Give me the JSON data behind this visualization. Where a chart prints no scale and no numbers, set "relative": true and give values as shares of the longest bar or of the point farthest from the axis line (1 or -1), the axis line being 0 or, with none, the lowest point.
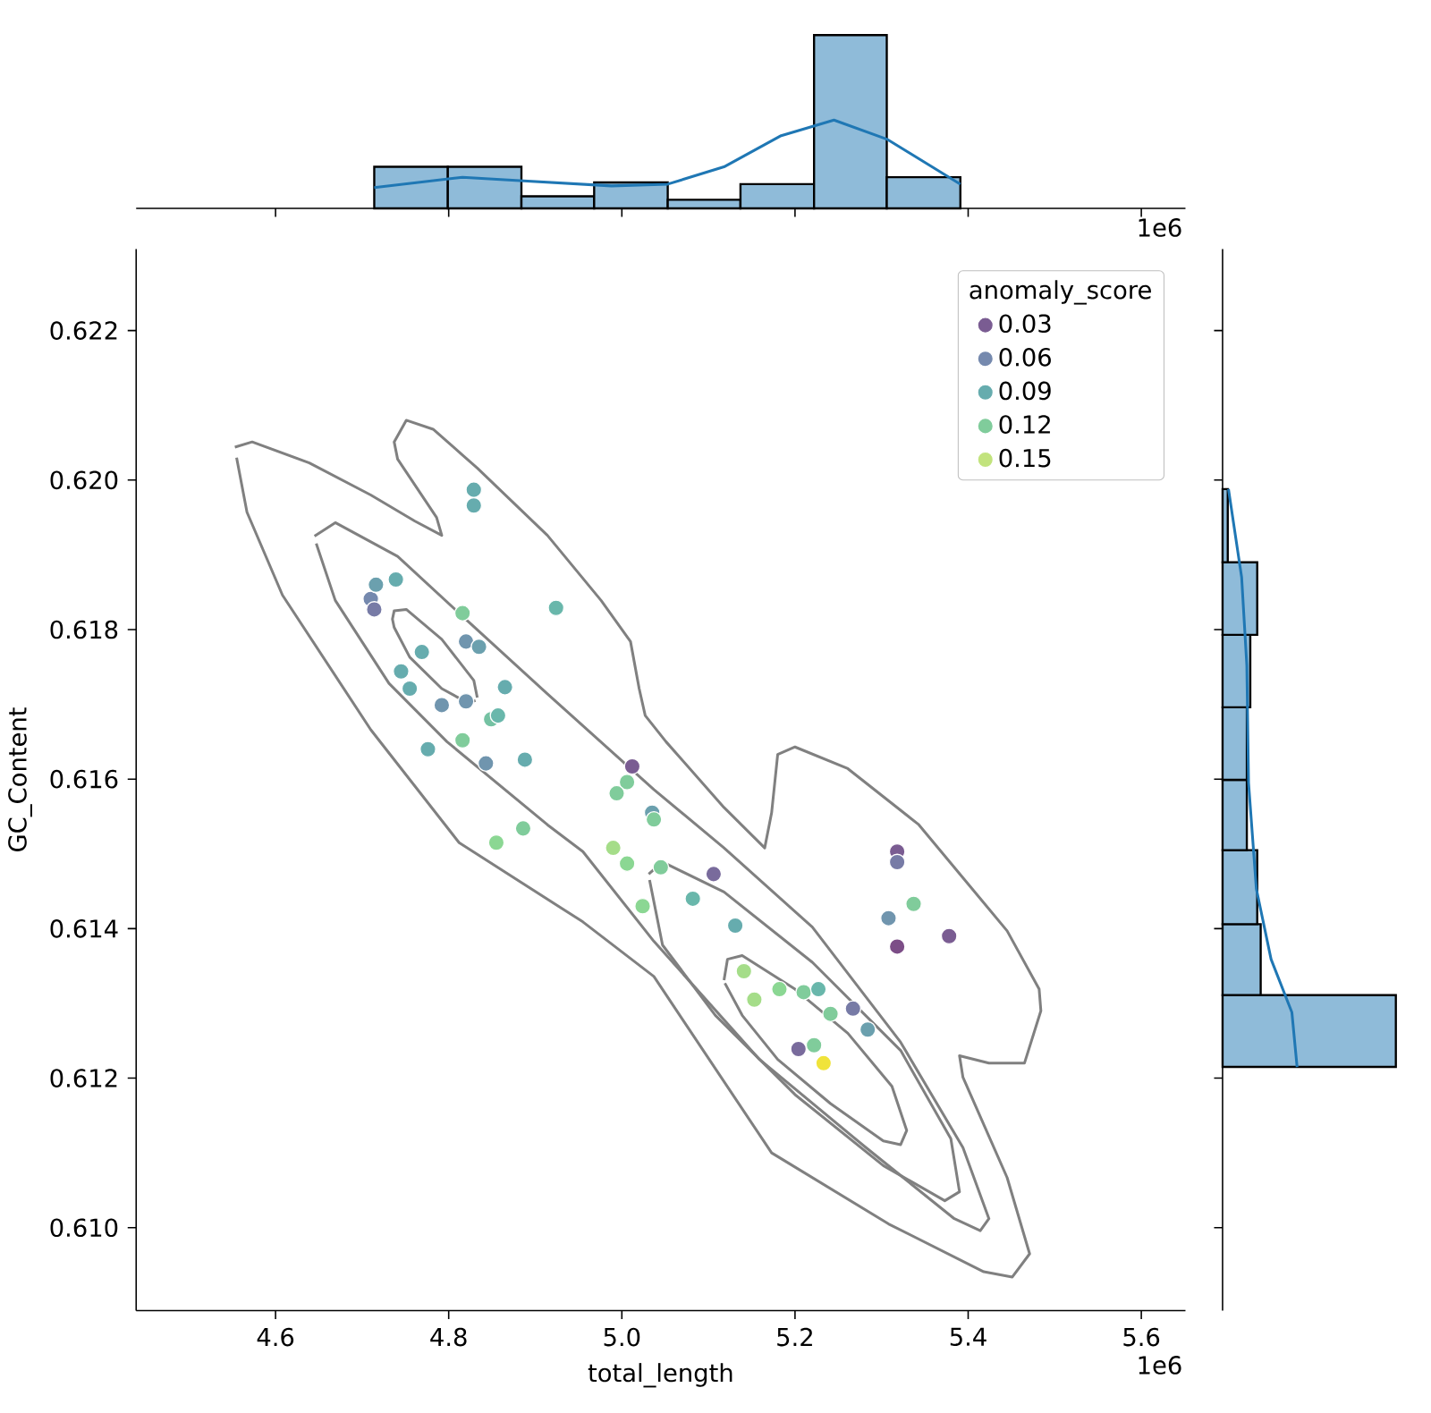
{
  "chart_data": [
    {
      "type": "histogram",
      "relative": true,
      "xlim": [
        4.439,
        5.651
      ],
      "xticks": [
        4.6,
        4.8,
        5,
        5.2,
        5.4,
        5.6
      ],
      "tick_labels": false,
      "annotations": [
        "1e6"
      ],
      "series": [
        {
          "color": "#8fbbd9",
          "bins": [
            4.714,
            4.799,
            4.884,
            4.968,
            5.053,
            5.137,
            5.222,
            5.306,
            5.391
          ],
          "values": [
            0.24,
            0.24,
            0.07,
            0.15,
            0.05,
            0.14,
            1,
            0.18
          ]
        },
        {
          "type": "line",
          "color": "#1f77b4",
          "x": [
            4.714,
            4.816,
            4.882,
            4.988,
            5.053,
            5.118,
            5.184,
            5.245,
            5.306,
            5.391
          ],
          "values": [
            0.12,
            0.18,
            0.16,
            0.13,
            0.14,
            0.24,
            0.42,
            0.51,
            0.4,
            0.14
          ]
        }
      ]
    },
    {
      "type": "scatter",
      "xlabel": "total_length",
      "ylabel": "GC_Content",
      "xlim": [
        4.439,
        5.651
      ],
      "ylim": [
        0.60889,
        0.62309
      ],
      "xticks": [
        4.6,
        4.8,
        {
          "value": 5.0,
          "label": "5.0"
        },
        5.2,
        5.4,
        5.6
      ],
      "yticks": [
        {
          "value": 0.61,
          "label": "0.610"
        },
        0.612,
        0.614,
        0.616,
        0.618,
        {
          "value": 0.62,
          "label": "0.620"
        },
        0.622
      ],
      "annotations": [
        "1e6"
      ],
      "legend": "top right",
      "legend_title": "anomaly_score",
      "series": [
        {
          "type": "line",
          "color": "#808080",
          "x": [
            4.553,
            4.573,
            4.639,
            4.71,
            4.761,
            4.792,
            4.786,
            4.741,
            4.737,
            4.751,
            4.782,
            4.833,
            4.914,
            4.976,
            5.01,
            5.02,
            5.027,
            5.051,
            5.118,
            5.165,
            5.173,
            5.18,
            5.2,
            5.261,
            5.343,
            5.445,
            5.482,
            5.484,
            5.465,
            5.424,
            5.39,
            5.394,
            5.445,
            5.471,
            5.451,
            5.418,
            5.308,
            5.173,
            5.037,
            4.955,
            4.812,
            4.71,
            4.608,
            4.567,
            4.555
          ],
          "values": [
            0.62044,
            0.62051,
            0.62023,
            0.6198,
            0.61945,
            0.61926,
            0.6195,
            0.62028,
            0.62051,
            0.6208,
            0.62068,
            0.62016,
            0.61926,
            0.61839,
            0.61784,
            0.61721,
            0.61685,
            0.6165,
            0.61562,
            0.61508,
            0.61555,
            0.61633,
            0.61643,
            0.61614,
            0.61539,
            0.61397,
            0.61319,
            0.6129,
            0.6122,
            0.6122,
            0.6123,
            0.61201,
            0.61067,
            0.60965,
            0.60934,
            0.60941,
            0.61005,
            0.611,
            0.61336,
            0.61409,
            0.61515,
            0.61666,
            0.61846,
            0.61957,
            0.6203
          ]
        },
        {
          "type": "line",
          "color": "#808080",
          "x": [
            4.645,
            4.669,
            4.741,
            4.812,
            4.914,
            5.037,
            5.118,
            5.22,
            5.322,
            5.394,
            5.424,
            5.414,
            5.384,
            5.282,
            5.159,
            5.037,
            4.955,
            4.914,
            4.798,
            4.731,
            4.669,
            4.647
          ],
          "values": [
            0.61925,
            0.61943,
            0.61898,
            0.61822,
            0.61714,
            0.61586,
            0.61508,
            0.61402,
            0.61248,
            0.61107,
            0.61012,
            0.60996,
            0.61012,
            0.61107,
            0.61225,
            0.61383,
            0.61503,
            0.61539,
            0.6165,
            0.61728,
            0.61839,
            0.61915
          ]
        },
        {
          "type": "line",
          "color": "#808080",
          "x": [
            5.031,
            5.047,
            5.118,
            5.22,
            5.322,
            5.38,
            5.39,
            5.373,
            5.302,
            5.2,
            5.108,
            5.047,
            5.032
          ],
          "values": [
            0.61473,
            0.61489,
            0.61449,
            0.61355,
            0.61237,
            0.61119,
            0.61048,
            0.61036,
            0.61083,
            0.61178,
            0.61284,
            0.61378,
            0.61465
          ]
        },
        {
          "type": "line",
          "color": "#808080",
          "x": [
            5.118,
            5.122,
            5.139,
            5.2,
            5.261,
            5.312,
            5.329,
            5.322,
            5.302,
            5.241,
            5.18,
            5.139,
            5.119
          ],
          "values": [
            0.61331,
            0.61359,
            0.61364,
            0.61319,
            0.6126,
            0.61189,
            0.6113,
            0.61111,
            0.61116,
            0.61166,
            0.61225,
            0.61284,
            0.61327
          ]
        },
        {
          "type": "line",
          "color": "#808080",
          "x": [
            4.833,
            4.829,
            4.792,
            4.751,
            4.737,
            4.735,
            4.737,
            4.755,
            4.792,
            4.822,
            4.831
          ],
          "values": [
            0.61709,
            0.61732,
            0.61787,
            0.61827,
            0.61825,
            0.61814,
            0.61803,
            0.61763,
            0.61721,
            0.61702,
            0.61705
          ]
        },
        {
          "marker": "circle",
          "x": [
            4.71,
            4.714,
            4.716,
            4.739,
            4.829,
            4.829,
            4.924,
            4.816,
            4.769,
            4.82,
            4.835,
            4.745,
            4.755,
            4.792,
            4.82,
            4.865,
            4.849,
            4.857,
            4.776,
            4.816,
            4.843,
            4.888,
            5.012,
            5.006,
            4.994,
            5.035,
            5.037,
            4.855,
            4.886,
            4.99,
            5.006,
            5.045,
            5.024,
            5.106,
            5.082,
            5.131,
            5.318,
            5.318,
            5.337,
            5.308,
            5.318,
            5.378,
            5.141,
            5.153,
            5.182,
            5.21,
            5.227,
            5.241,
            5.267,
            5.284,
            5.204,
            5.222,
            5.233
          ],
          "values": [
            0.61841,
            0.61827,
            0.6186,
            0.61867,
            0.61987,
            0.61966,
            0.61829,
            0.61822,
            0.6177,
            0.61784,
            0.61777,
            0.61744,
            0.61721,
            0.61699,
            0.61704,
            0.61723,
            0.6168,
            0.61685,
            0.6164,
            0.61652,
            0.61621,
            0.61626,
            0.61617,
            0.61596,
            0.61581,
            0.61555,
            0.61546,
            0.61515,
            0.61534,
            0.61508,
            0.61487,
            0.61482,
            0.6143,
            0.61473,
            0.6144,
            0.61404,
            0.61503,
            0.61489,
            0.61433,
            0.61414,
            0.61376,
            0.6139,
            0.61343,
            0.61305,
            0.61319,
            0.61315,
            0.61319,
            0.61286,
            0.61293,
            0.61265,
            0.61239,
            0.61244,
            0.6122
          ],
          "colors": [
            "#7589ae",
            "#777ba6",
            "#6ba0ae",
            "#66acae",
            "#66acae",
            "#66acae",
            "#69b7ab",
            "#80cc9b",
            "#66acae",
            "#7095ae",
            "#6ba0ae",
            "#66acae",
            "#66acae",
            "#7095ae",
            "#7095ae",
            "#66acae",
            "#75c2a3",
            "#69b7ab",
            "#66acae",
            "#80cc9b",
            "#7095ae",
            "#66acae",
            "#7a5c92",
            "#80cc9b",
            "#80cc9b",
            "#6ba0ae",
            "#80cc9b",
            "#8bd793",
            "#80cc9b",
            "#a5dd89",
            "#8bd793",
            "#80cc9b",
            "#8bd793",
            "#796b9c",
            "#69b7ab",
            "#66acae",
            "#7a5c92",
            "#777ba6",
            "#80cc9b",
            "#7095ae",
            "#7c4d87",
            "#7a5c92",
            "#a5dd89",
            "#a5dd89",
            "#8bd793",
            "#80cc9b",
            "#69b7ab",
            "#80cc9b",
            "#777ba6",
            "#6ba0ae",
            "#796b9c",
            "#80cc9b",
            "#f0e33a"
          ]
        },
        {
          "name": "0.03",
          "color": "#7a5c92"
        },
        {
          "name": "0.06",
          "color": "#7589ae"
        },
        {
          "name": "0.09",
          "color": "#66acae"
        },
        {
          "name": "0.12",
          "color": "#80cc9b"
        },
        {
          "name": "0.15",
          "color": "#c2e37d"
        }
      ]
    },
    {
      "type": "histogram",
      "orientation": "horizontal",
      "relative": true,
      "ylim": [
        0.60889,
        0.62309
      ],
      "yticks": [
        0.61,
        0.612,
        0.614,
        0.616,
        0.618,
        0.62,
        0.622
      ],
      "tick_labels": false,
      "series": [
        {
          "color": "#8fbbd9",
          "bins": [
            0.61215,
            0.61311,
            0.61406,
            0.61505,
            0.61599,
            0.61696,
            0.61793,
            0.6189,
            0.61988
          ],
          "values": [
            1,
            0.22,
            0.2,
            0.14,
            0.14,
            0.16,
            0.2,
            0.03
          ]
        },
        {
          "type": "line",
          "color": "#1f77b4",
          "x": [
            0.61215,
            0.61288,
            0.61359,
            0.61453,
            0.61595,
            0.61752,
            0.6187,
            0.61988
          ],
          "values": [
            0.43,
            0.4,
            0.28,
            0.195,
            0.15,
            0.14,
            0.11,
            0.034
          ]
        }
      ]
    }
  ]
}
